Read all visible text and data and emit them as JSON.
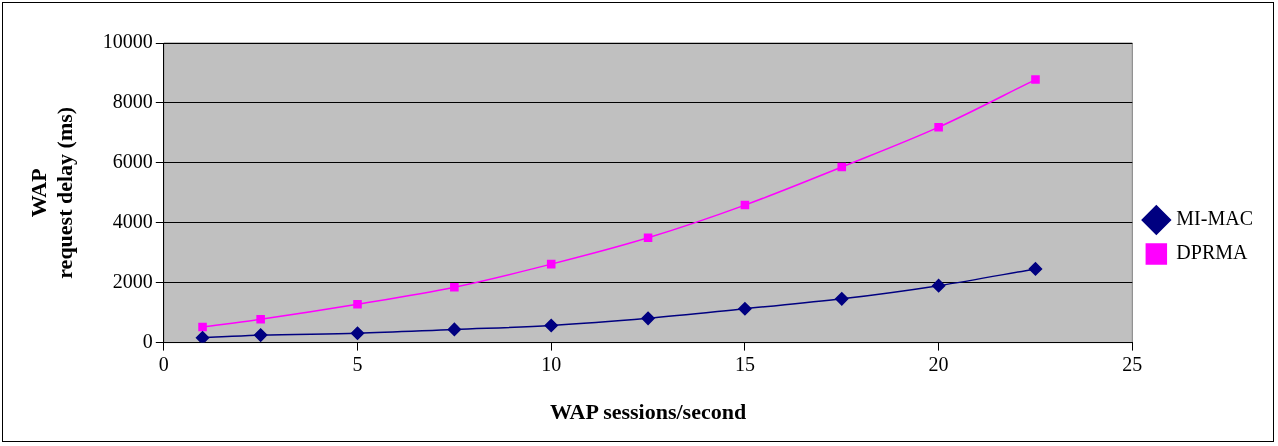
{
  "chart_data": {
    "type": "line",
    "xlabel": "WAP sessions/second",
    "ylabel": "WAP\nrequest delay (ms)",
    "x": [
      1,
      2.5,
      5,
      7.5,
      10,
      12.5,
      15,
      17.5,
      20,
      22.5
    ],
    "series": [
      {
        "name": "MI-MAC",
        "color": "#000080",
        "marker": "diamond",
        "values": [
          160,
          250,
          310,
          440,
          570,
          810,
          1130,
          1460,
          1900,
          2460
        ]
      },
      {
        "name": "DPRMA",
        "color": "#ff00ff",
        "marker": "square",
        "values": [
          520,
          780,
          1280,
          1850,
          2620,
          3500,
          4590,
          5860,
          7190,
          8780
        ]
      }
    ],
    "xlim": [
      0,
      25
    ],
    "xticks": [
      0,
      5,
      10,
      15,
      20,
      25
    ],
    "ylim": [
      0,
      10000
    ],
    "yticks": [
      0,
      2000,
      4000,
      6000,
      8000,
      10000
    ],
    "grid": "y",
    "legend": "right",
    "line_style": "solid"
  }
}
